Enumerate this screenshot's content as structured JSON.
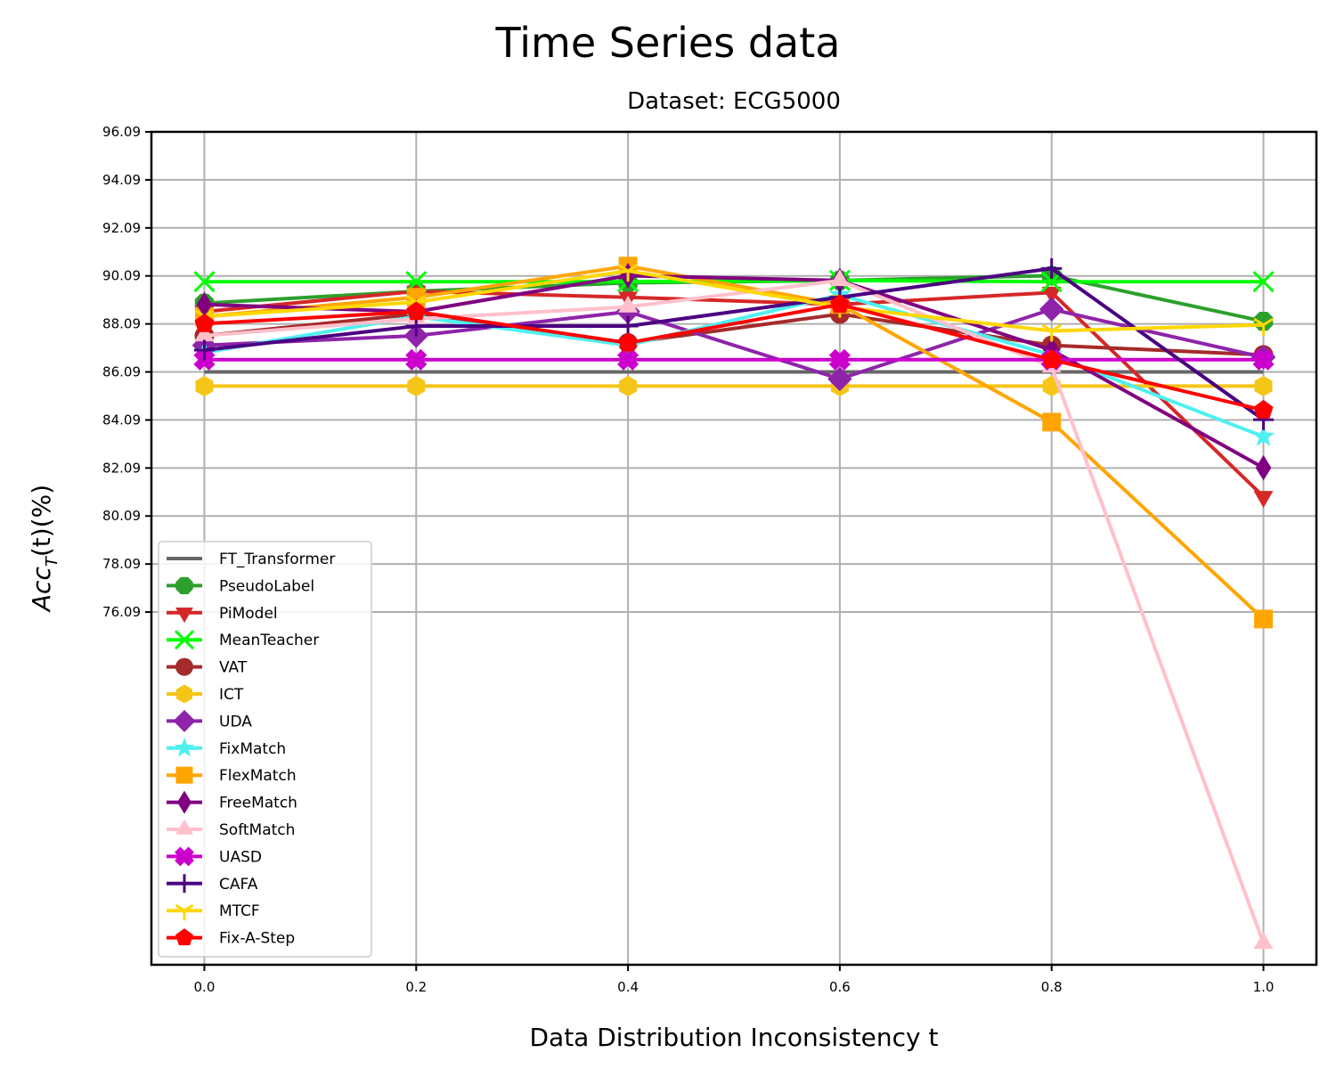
{
  "chart_data": {
    "type": "line",
    "suptitle": "Time Series data",
    "title": "Dataset: ECG5000",
    "xlabel": "Data Distribution Inconsistency t",
    "ylabel_main": "Acc",
    "ylabel_sub": "T",
    "ylabel_tail": "(t)(%)",
    "x": [
      0.0,
      0.2,
      0.4,
      0.6,
      0.8,
      1.0
    ],
    "x_tick_labels": [
      "0.0",
      "0.2",
      "0.4",
      "0.6",
      "0.8",
      "1.0"
    ],
    "y_ticks": [
      76.09,
      78.09,
      80.09,
      82.09,
      84.09,
      86.09,
      88.09,
      90.09,
      92.09,
      94.09,
      96.09
    ],
    "y_tick_labels": [
      "76.09",
      "78.09",
      "80.09",
      "82.09",
      "84.09",
      "86.09",
      "88.09",
      "90.09",
      "92.09",
      "94.09",
      "96.09"
    ],
    "xlim": [
      -0.05,
      1.05
    ],
    "ylim": [
      61.4,
      96.09
    ],
    "grid": true,
    "legend_position": "lower-left",
    "series": [
      {
        "name": "FT_Transformer",
        "color": "#666666",
        "marker": "none",
        "values": [
          86.09,
          86.09,
          86.09,
          86.09,
          86.09,
          86.09
        ]
      },
      {
        "name": "PseudoLabel",
        "color": "#2ca02c",
        "marker": "octagon",
        "values": [
          88.95,
          89.45,
          89.8,
          89.9,
          90.1,
          88.2
        ]
      },
      {
        "name": "PiModel",
        "color": "#d62728",
        "marker": "triangle-down",
        "values": [
          88.6,
          89.45,
          89.2,
          88.9,
          89.4,
          80.9
        ]
      },
      {
        "name": "MeanTeacher",
        "color": "#00ff00",
        "marker": "x",
        "values": [
          89.85,
          89.85,
          89.85,
          89.9,
          89.85,
          89.85
        ]
      },
      {
        "name": "VAT",
        "color": "#a52a2a",
        "marker": "circle",
        "values": [
          87.6,
          88.5,
          87.3,
          88.5,
          87.2,
          86.8
        ]
      },
      {
        "name": "ICT",
        "color": "#f5c518",
        "marker": "hexagon",
        "values": [
          85.5,
          85.5,
          85.5,
          85.5,
          85.5,
          85.5
        ]
      },
      {
        "name": "UDA",
        "color": "#8e24aa",
        "marker": "diamond",
        "values": [
          87.2,
          87.6,
          88.6,
          85.8,
          88.7,
          86.7
        ]
      },
      {
        "name": "FixMatch",
        "color": "#4ff0f0",
        "marker": "star",
        "values": [
          86.9,
          88.4,
          87.2,
          89.3,
          86.8,
          83.4
        ]
      },
      {
        "name": "FlexMatch",
        "color": "#ffa500",
        "marker": "square",
        "values": [
          88.4,
          89.2,
          90.5,
          88.9,
          84.0,
          75.8
        ]
      },
      {
        "name": "FreeMatch",
        "color": "#800080",
        "marker": "thin-diamond",
        "values": [
          88.9,
          88.6,
          90.1,
          89.9,
          87.0,
          82.1
        ]
      },
      {
        "name": "SoftMatch",
        "color": "#ffc0cb",
        "marker": "triangle-up",
        "values": [
          87.6,
          88.3,
          88.8,
          89.9,
          86.3,
          62.3
        ]
      },
      {
        "name": "UASD",
        "color": "#cc00cc",
        "marker": "plus-filled",
        "values": [
          86.6,
          86.6,
          86.6,
          86.6,
          86.6,
          86.6
        ]
      },
      {
        "name": "CAFA",
        "color": "#4b0082",
        "marker": "plus",
        "values": [
          87.0,
          88.0,
          88.0,
          89.2,
          90.4,
          84.1
        ]
      },
      {
        "name": "MTCF",
        "color": "#ffd700",
        "marker": "tri-down",
        "values": [
          88.4,
          89.0,
          90.3,
          88.8,
          87.8,
          88.05
        ]
      },
      {
        "name": "Fix-A-Step",
        "color": "#ff0000",
        "marker": "pentagon",
        "values": [
          88.1,
          88.6,
          87.3,
          88.9,
          86.6,
          84.5
        ]
      }
    ]
  }
}
